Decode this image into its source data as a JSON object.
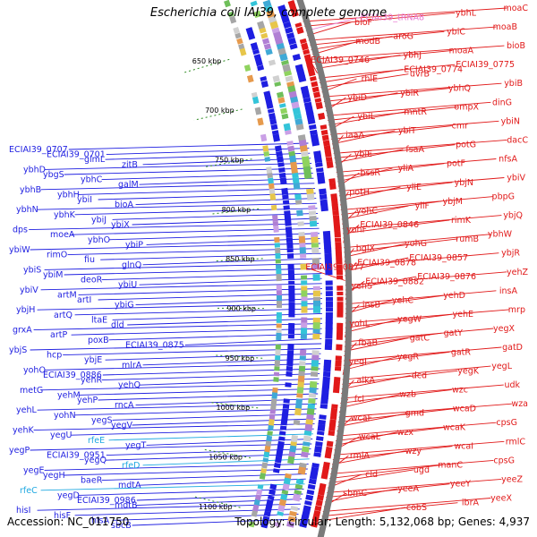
{
  "title": "Escherichia coli IAI39, complete genome",
  "footer": {
    "accession": "Accession: NC_011750",
    "stats": "Topology: circular; Length: 5,132,068 bp; Genes: 4,937"
  },
  "colors": {
    "forward_strand": "#e11919",
    "reverse_strand": "#1e1ee1",
    "trna": "#e879d2",
    "cyan_gene": "#1ea8e1",
    "backbone": "#7a7a7a",
    "ruler_dots": "#2e8b22"
  },
  "ruler": [
    "650 kbp",
    "700 kbp",
    "750 kbp",
    "800 kbp",
    "850 kbp",
    "900 kbp",
    "950 kbp",
    "1000 kbp",
    "1050 kbp",
    "1100 kbp"
  ],
  "forward_labels": [
    "moaC",
    "ybhL",
    "ECIAI39_tRNA8",
    "bioF",
    "moaB",
    "ybiC",
    "aroG",
    "modB",
    "bioB",
    "moaA",
    "ybhJ",
    "ECIAI39_0746",
    "ECIAI39_0775",
    "ECIAI39_0774",
    "uvrB",
    "rhlE",
    "ybiB",
    "ybhQ",
    "ybiR",
    "ybiD",
    "dinG",
    "ompX",
    "mntR",
    "ybiL",
    "ybiN",
    "cmr",
    "ybiT",
    "iaaA",
    "dacC",
    "potG",
    "fsaA",
    "ybiE",
    "nfsA",
    "potF",
    "yliA",
    "bssR",
    "ybiV",
    "ybjN",
    "yliE",
    "potH",
    "pbpG",
    "ybjM",
    "yliF",
    "yohC",
    "ybjQ",
    "rimK",
    "ECIAI39_0846",
    "yohF",
    "ybhW",
    "rumB",
    "yohG",
    "bglX",
    "ybjR",
    "ECIAI39_0857",
    "ECIAI39_0878",
    "ECIAI39_0877",
    "yehZ",
    "ECIAI39_0876",
    "ECIAI39_0882",
    "yehS",
    "insA",
    "yehD",
    "yehC",
    "insB",
    "mrp",
    "yehE",
    "yegW",
    "yohL",
    "yegX",
    "gatY",
    "gatC",
    "fbaB",
    "gatD",
    "gatR",
    "yegR",
    "yegI",
    "yegL",
    "yegK",
    "dcd",
    "alkA",
    "udk",
    "wzc",
    "wzb",
    "fcl",
    "wza",
    "wcaD",
    "gmd",
    "wcaF",
    "cpsG",
    "wcaK",
    "wzx",
    "wcaL",
    "rmlC",
    "wcaI",
    "wzy",
    "rmlA",
    "cpsG",
    "manC",
    "ugd",
    "cld",
    "yeeZ",
    "yeeY",
    "yeeA",
    "sbmC",
    "yeeX",
    "ibrA",
    "cobS"
  ],
  "reverse_labels": [
    "ECIAI39_0707",
    "ECIAI39_0701",
    "glmL",
    "zitB",
    "ybhD",
    "ybgS",
    "ybhC",
    "galM",
    "ybhB",
    "ybhH",
    "ybiI",
    "bioA",
    "ybhN",
    "ybhK",
    "ybiJ",
    "ybiX",
    "dps",
    "moeA",
    "ybhO",
    "ybiP",
    "ybiW",
    "rimO",
    "fiu",
    "glnQ",
    "ybiS",
    "ybiM",
    "deoR",
    "ybiU",
    "ybiV",
    "artM",
    "artI",
    "ybiG",
    "ybjH",
    "artQ",
    "ltaE",
    "dld",
    "grxA",
    "artP",
    "poxB",
    "ECIAI39_0875",
    "ybjS",
    "hcp",
    "ybjE",
    "mlrA",
    "yohO",
    "ECIAI39_0886",
    "yehR",
    "yehQ",
    "metG",
    "yehM",
    "yehP",
    "rncA",
    "yehL",
    "yohN",
    "yegS",
    "yegV",
    "yehK",
    "yegU",
    "rfeE",
    "yegT",
    "yegP",
    "ECIAI39_0951",
    "yegQ",
    "rfeD",
    "yegE",
    "yegH",
    "baeR",
    "mdtA",
    "rfeC",
    "yegD",
    "ECIAI39_0986",
    "mdtB",
    "hisI",
    "hisF",
    "hisA",
    "sbcB"
  ]
}
